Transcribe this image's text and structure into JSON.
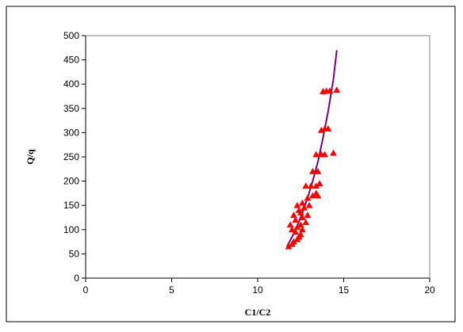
{
  "chart_data": {
    "type": "scatter",
    "xlabel": "C1/C2",
    "ylabel": "Q/q",
    "xlim": [
      0,
      20
    ],
    "ylim": [
      0,
      500
    ],
    "xticks": [
      0,
      5,
      10,
      15,
      20
    ],
    "yticks": [
      0,
      50,
      100,
      150,
      200,
      250,
      300,
      350,
      400,
      450,
      500
    ],
    "grid": false,
    "colors": {
      "points": "#ff0000",
      "curve": "#7f007f"
    },
    "series": [
      {
        "kind": "scatter",
        "marker": "triangle",
        "points": [
          [
            11.8,
            65
          ],
          [
            12.0,
            70
          ],
          [
            12.1,
            75
          ],
          [
            12.3,
            80
          ],
          [
            12.4,
            85
          ],
          [
            12.5,
            90
          ],
          [
            12.2,
            95
          ],
          [
            12.0,
            100
          ],
          [
            12.6,
            100
          ],
          [
            12.3,
            105
          ],
          [
            11.9,
            110
          ],
          [
            12.5,
            110
          ],
          [
            12.8,
            115
          ],
          [
            12.2,
            120
          ],
          [
            12.6,
            125
          ],
          [
            12.1,
            130
          ],
          [
            12.9,
            130
          ],
          [
            12.5,
            135
          ],
          [
            12.4,
            140
          ],
          [
            12.7,
            145
          ],
          [
            12.3,
            150
          ],
          [
            13.0,
            150
          ],
          [
            12.6,
            155
          ],
          [
            12.9,
            165
          ],
          [
            13.2,
            170
          ],
          [
            13.5,
            170
          ],
          [
            13.4,
            175
          ],
          [
            12.8,
            190
          ],
          [
            13.1,
            190
          ],
          [
            13.4,
            190
          ],
          [
            13.6,
            195
          ],
          [
            13.2,
            220
          ],
          [
            13.5,
            220
          ],
          [
            13.4,
            255
          ],
          [
            13.7,
            255
          ],
          [
            13.9,
            255
          ],
          [
            14.4,
            258
          ],
          [
            13.7,
            305
          ],
          [
            13.9,
            308
          ],
          [
            14.1,
            308
          ],
          [
            13.8,
            385
          ],
          [
            14.0,
            386
          ],
          [
            14.2,
            386
          ],
          [
            14.6,
            388
          ]
        ]
      },
      {
        "kind": "line",
        "points": [
          [
            11.7,
            65
          ],
          [
            12.0,
            85
          ],
          [
            12.3,
            108
          ],
          [
            12.6,
            135
          ],
          [
            12.9,
            165
          ],
          [
            13.2,
            200
          ],
          [
            13.5,
            240
          ],
          [
            13.8,
            290
          ],
          [
            14.1,
            345
          ],
          [
            14.4,
            410
          ],
          [
            14.6,
            470
          ]
        ]
      }
    ]
  }
}
